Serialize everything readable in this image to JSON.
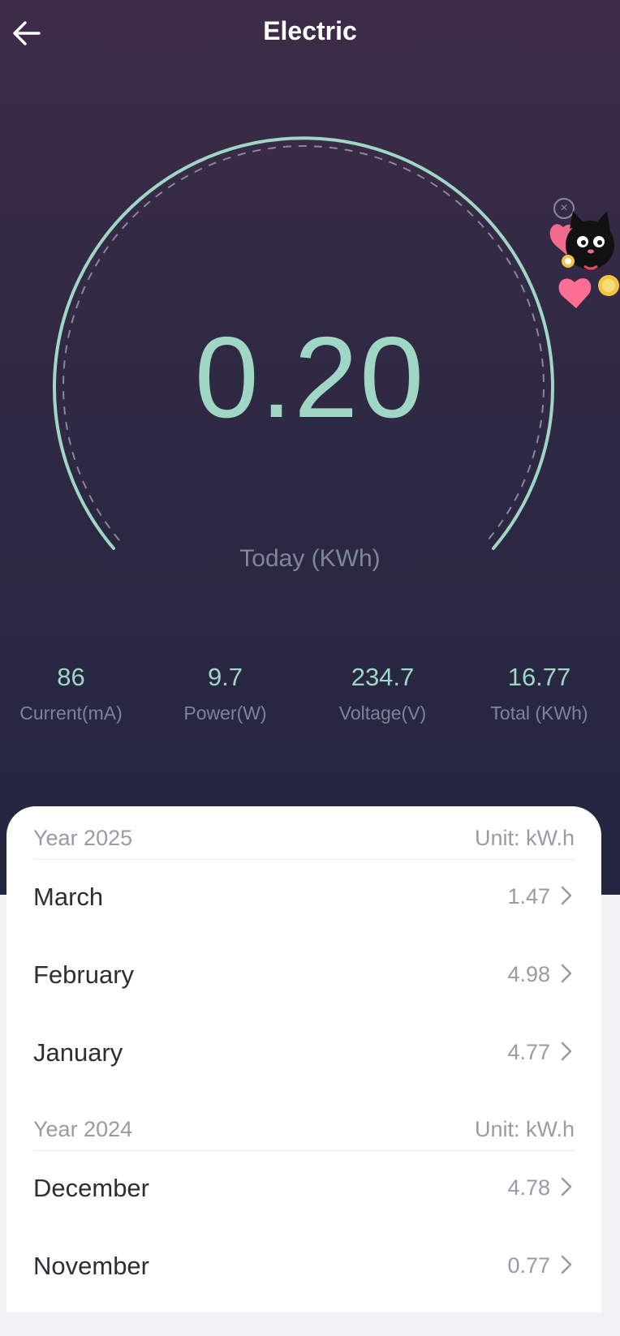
{
  "header": {
    "title": "Electric"
  },
  "gauge": {
    "value": "0.20",
    "label": "Today (KWh)",
    "accent": "#9fd6c4"
  },
  "stats": [
    {
      "value": "86",
      "label": "Current(mA)"
    },
    {
      "value": "9.7",
      "label": "Power(W)"
    },
    {
      "value": "234.7",
      "label": "Voltage(V)"
    },
    {
      "value": "16.77",
      "label": "Total (KWh)"
    }
  ],
  "history": {
    "sections": [
      {
        "year": "Year 2025",
        "unit": "Unit: kW.h",
        "months": [
          {
            "name": "March",
            "value": "1.47"
          },
          {
            "name": "February",
            "value": "4.98"
          },
          {
            "name": "January",
            "value": "4.77"
          }
        ]
      },
      {
        "year": "Year 2024",
        "unit": "Unit: kW.h",
        "months": [
          {
            "name": "December",
            "value": "4.78"
          },
          {
            "name": "November",
            "value": "0.77"
          }
        ]
      }
    ]
  },
  "icons": {
    "back": "arrow-left-icon",
    "close": "close-circle-icon",
    "mascot": "cat-mascot-icon",
    "chevron": "chevron-right-icon"
  },
  "colors": {
    "hero_top": "#3d2c47",
    "hero_bottom": "#232640",
    "accent": "#9fd6c4",
    "muted": "#7b8596"
  }
}
